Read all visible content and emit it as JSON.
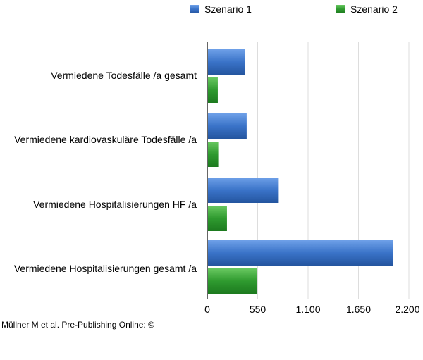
{
  "chart_data": {
    "type": "bar",
    "orientation": "horizontal",
    "title": "",
    "xlabel": "",
    "ylabel": "",
    "categories": [
      "Vermiedene Todesfälle /a gesamt",
      "Vermiedene kardiovaskuläre Todesfälle /a",
      "Vermiedene Hospitalisierungen HF /a",
      "Vermiedene Hospitalisierungen gesamt /a"
    ],
    "series": [
      {
        "name": "Szenario 1",
        "color": "#3a73c8",
        "values": [
          415,
          430,
          780,
          2030
        ]
      },
      {
        "name": "Szenario 2",
        "color": "#2f9a2f",
        "values": [
          115,
          120,
          215,
          540
        ]
      }
    ],
    "xlim": [
      0,
      2200
    ],
    "xticks": [
      0,
      550,
      1100,
      1650,
      2200
    ],
    "xtick_labels": [
      "0",
      "550",
      "1.100",
      "1.650",
      "2.200"
    ],
    "grid": true,
    "legend_position": "top"
  },
  "credit": "Müllner M et al. Pre-Publishing Online: ©"
}
